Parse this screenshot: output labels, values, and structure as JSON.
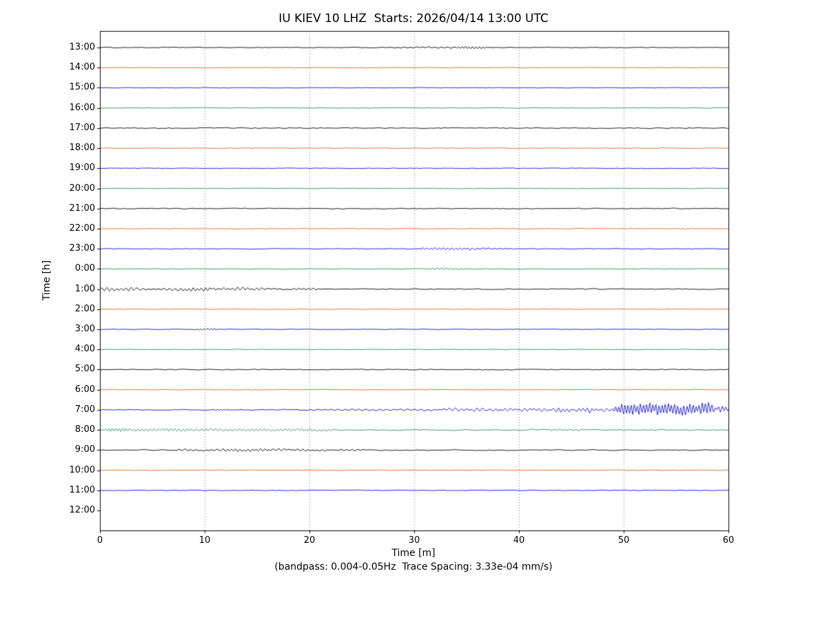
{
  "chart_data": {
    "type": "line",
    "title": "IU KIEV 10 LHZ  Starts: 2026/04/14 13:00 UTC",
    "xlabel": "Time [m]",
    "ylabel": "Time [h]",
    "footnote": "(bandpass: 0.004-0.05Hz  Trace Spacing: 3.33e-04 mm/s)",
    "xlim": [
      0,
      60
    ],
    "x_ticks": [
      0,
      10,
      20,
      30,
      40,
      50,
      60
    ],
    "grid": "vertical-dotted",
    "legend": "none",
    "trace_colors": [
      "#000000",
      "#d2691e",
      "#0f0fd2",
      "#2e8b57"
    ],
    "rows": [
      {
        "label": "13:00",
        "base": 0.7,
        "events": [
          {
            "t0": 29,
            "t1": 33,
            "amp": 0.8,
            "rise": 2,
            "fall": 2,
            "lambda": 9
          },
          {
            "t0": 34.5,
            "t1": 36.5,
            "amp": 1.8,
            "rise": 0.8,
            "fall": 1,
            "lambda": 5
          }
        ]
      },
      {
        "label": "14:00",
        "base": 0.55,
        "events": []
      },
      {
        "label": "15:00",
        "base": 0.5,
        "events": []
      },
      {
        "label": "16:00",
        "base": 0.5,
        "events": []
      },
      {
        "label": "17:00",
        "base": 0.8,
        "events": []
      },
      {
        "label": "18:00",
        "base": 0.55,
        "events": []
      },
      {
        "label": "19:00",
        "base": 0.5,
        "events": []
      },
      {
        "label": "20:00",
        "base": 0.5,
        "events": []
      },
      {
        "label": "21:00",
        "base": 0.75,
        "events": []
      },
      {
        "label": "22:00",
        "base": 0.6,
        "events": [
          {
            "t0": 54,
            "t1": 57,
            "amp": 0.7,
            "rise": 1,
            "fall": 1,
            "lambda": 7
          }
        ]
      },
      {
        "label": "23:00",
        "base": 0.6,
        "events": [
          {
            "t0": 31,
            "t1": 35,
            "amp": 1.6,
            "rise": 1,
            "fall": 1.5,
            "lambda": 6
          },
          {
            "t0": 35,
            "t1": 38,
            "amp": 0.9,
            "rise": 0.5,
            "fall": 2.5,
            "lambda": 8
          }
        ]
      },
      {
        "label": "0:00",
        "base": 0.6,
        "events": [
          {
            "t0": 31.5,
            "t1": 34,
            "amp": 1.1,
            "rise": 1,
            "fall": 1.5,
            "lambda": 7
          }
        ]
      },
      {
        "label": "1:00",
        "base": 0.8,
        "events": [
          {
            "t0": 0,
            "t1": 16,
            "amp": 0.9,
            "rise": 0,
            "fall": 4,
            "lambda": 9
          },
          {
            "t0": 0,
            "t1": 3,
            "amp": 2.2,
            "rise": 0,
            "fall": 1,
            "lambda": 7
          },
          {
            "t0": 4,
            "t1": 7,
            "amp": 1.4,
            "rise": 1,
            "fall": 1,
            "lambda": 8
          },
          {
            "t0": 8,
            "t1": 10.5,
            "amp": 2.4,
            "rise": 0.7,
            "fall": 0.7,
            "lambda": 6
          },
          {
            "t0": 12,
            "t1": 15,
            "amp": 1.8,
            "rise": 0.7,
            "fall": 1,
            "lambda": 7
          },
          {
            "t0": 18.5,
            "t1": 20.5,
            "amp": 1.2,
            "rise": 0.7,
            "fall": 1,
            "lambda": 7
          }
        ]
      },
      {
        "label": "2:00",
        "base": 0.5,
        "events": []
      },
      {
        "label": "3:00",
        "base": 0.5,
        "events": [
          {
            "t0": 9.3,
            "t1": 10.8,
            "amp": 1.3,
            "rise": 0.5,
            "fall": 0.6,
            "lambda": 5
          }
        ]
      },
      {
        "label": "4:00",
        "base": 0.5,
        "events": []
      },
      {
        "label": "5:00",
        "base": 0.7,
        "events": []
      },
      {
        "label": "6:00",
        "base": 0.5,
        "events": []
      },
      {
        "label": "7:00",
        "base": 0.7,
        "events": [
          {
            "t0": 11,
            "t1": 12,
            "amp": 1.2,
            "rise": 0.4,
            "fall": 0.4,
            "lambda": 5
          },
          {
            "t0": 25,
            "t1": 60,
            "amp": 1.2,
            "rise": 10,
            "fall": 0,
            "lambda": 10
          },
          {
            "t0": 33,
            "t1": 37,
            "amp": 1.6,
            "rise": 1.5,
            "fall": 1.5,
            "lambda": 8
          },
          {
            "t0": 38,
            "t1": 60,
            "amp": 1.6,
            "rise": 4,
            "fall": 0,
            "lambda": 7
          },
          {
            "t0": 44,
            "t1": 47,
            "amp": 2.2,
            "rise": 1,
            "fall": 1,
            "lambda": 6
          },
          {
            "t0": 50,
            "t1": 57.5,
            "amp": 8.5,
            "rise": 1.5,
            "fall": 1.5,
            "lambda": 4.5
          },
          {
            "t0": 57,
            "t1": 60,
            "amp": 4,
            "rise": 0.5,
            "fall": 0,
            "lambda": 5
          }
        ]
      },
      {
        "label": "8:00",
        "base": 1.0,
        "events": [
          {
            "t0": 0.8,
            "t1": 2.2,
            "amp": 2.6,
            "rise": 0.5,
            "fall": 0.7,
            "lambda": 5
          },
          {
            "t0": 3,
            "t1": 8,
            "amp": 1.8,
            "rise": 1,
            "fall": 1,
            "lambda": 6
          },
          {
            "t0": 9,
            "t1": 13,
            "amp": 1.4,
            "rise": 1,
            "fall": 1,
            "lambda": 7
          },
          {
            "t0": 14,
            "t1": 19,
            "amp": 1.6,
            "rise": 1,
            "fall": 1.5,
            "lambda": 6
          },
          {
            "t0": 20,
            "t1": 22,
            "amp": 1.2,
            "rise": 0.7,
            "fall": 1,
            "lambda": 7
          },
          {
            "t0": 43,
            "t1": 45.5,
            "amp": 1.0,
            "rise": 1,
            "fall": 1,
            "lambda": 8
          }
        ]
      },
      {
        "label": "9:00",
        "base": 0.8,
        "events": [
          {
            "t0": 8,
            "t1": 21,
            "amp": 0.7,
            "rise": 1,
            "fall": 2,
            "lambda": 9
          },
          {
            "t0": 8,
            "t1": 11,
            "amp": 1.0,
            "rise": 1,
            "fall": 1,
            "lambda": 8
          },
          {
            "t0": 12,
            "t1": 16,
            "amp": 1.7,
            "rise": 1,
            "fall": 1,
            "lambda": 6
          },
          {
            "t0": 17,
            "t1": 21,
            "amp": 1.1,
            "rise": 1,
            "fall": 1.5,
            "lambda": 7
          },
          {
            "t0": 23,
            "t1": 25,
            "amp": 0.9,
            "rise": 0.7,
            "fall": 1,
            "lambda": 8
          }
        ]
      },
      {
        "label": "10:00",
        "base": 0.55,
        "events": []
      },
      {
        "label": "11:00",
        "base": 0.6,
        "events": []
      },
      {
        "label": "12:00",
        "base": 0,
        "no_data": true,
        "events": []
      }
    ]
  }
}
